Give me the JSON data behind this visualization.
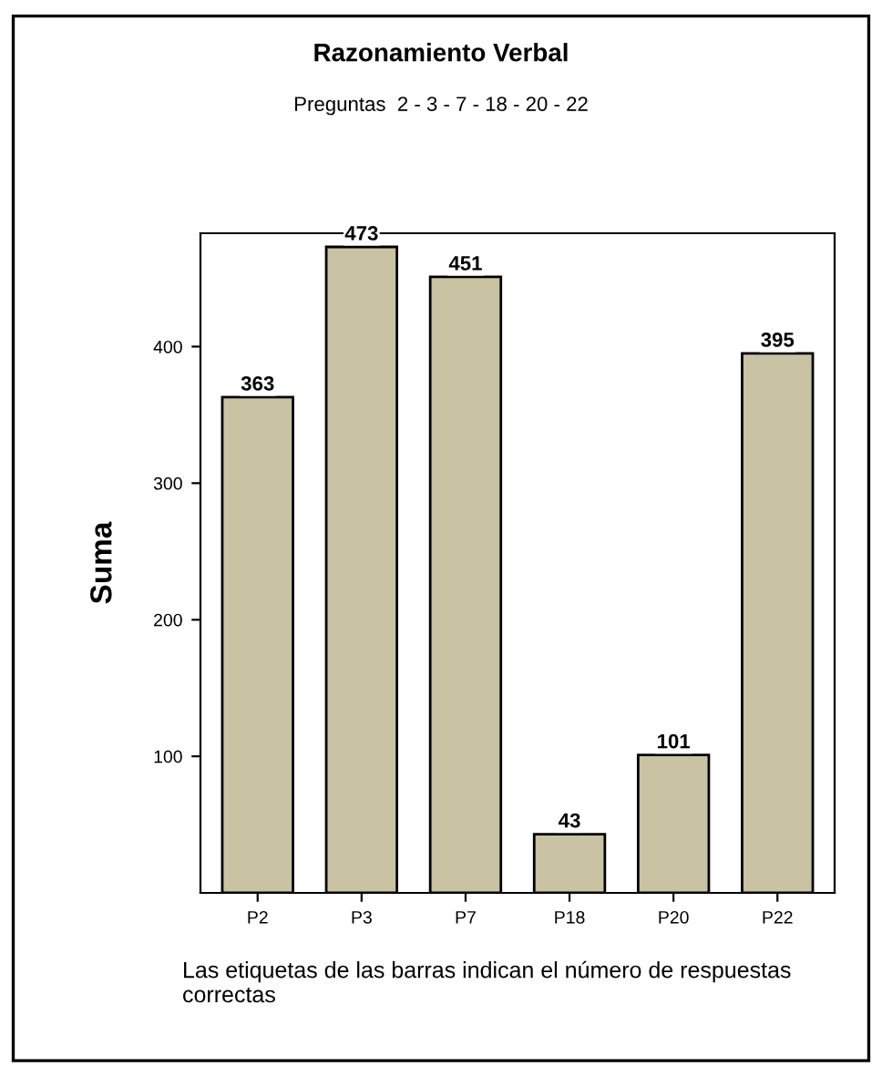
{
  "chart_data": {
    "type": "bar",
    "title": "Razonamiento Verbal",
    "subtitle": "Preguntas  2 - 3 - 7 - 18 - 20 - 22",
    "ylabel": "Suma",
    "categories": [
      "P2",
      "P3",
      "P7",
      "P18",
      "P20",
      "P22"
    ],
    "values": [
      363,
      473,
      451,
      43,
      101,
      395
    ],
    "color": "#c9c2a3",
    "data_labels": true,
    "ylim": [
      0,
      483
    ],
    "yticks": [
      100,
      200,
      300,
      400
    ],
    "grid": false,
    "legend": false,
    "annotations": [
      "Las etiquetas de las barras indican el número de respuestas correctas"
    ]
  }
}
